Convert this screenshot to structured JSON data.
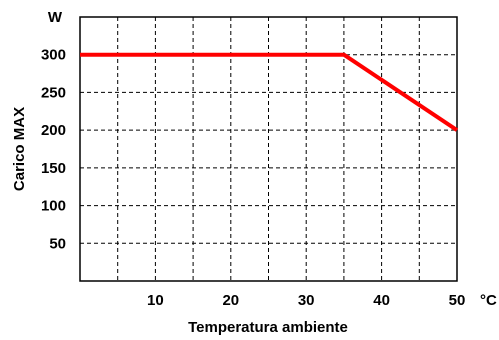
{
  "chart_data": {
    "type": "line",
    "title": "",
    "xlabel": "Temperatura ambiente",
    "ylabel": "Carico MAX",
    "x_unit": "°C",
    "y_unit": "W",
    "xlim": [
      0,
      50
    ],
    "ylim": [
      0,
      350
    ],
    "x_ticks": [
      10,
      20,
      30,
      40,
      50
    ],
    "y_ticks": [
      50,
      100,
      150,
      200,
      250,
      300
    ],
    "grid": true,
    "legend": "none",
    "series": [
      {
        "color": "#ff0000",
        "x": [
          0,
          35,
          50
        ],
        "y": [
          300,
          300,
          200
        ]
      }
    ]
  }
}
